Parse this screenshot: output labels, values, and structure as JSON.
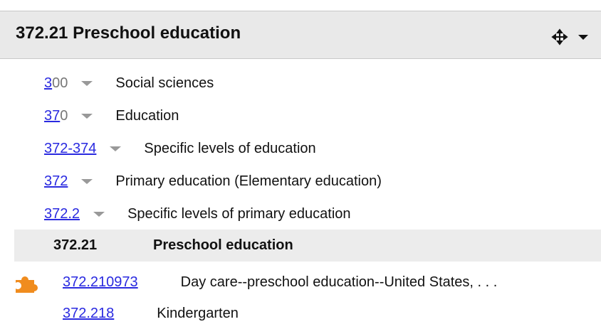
{
  "header": {
    "title": "372.21 Preschool education"
  },
  "hierarchy": [
    {
      "link": "3",
      "rest": "00",
      "label": "Social sciences"
    },
    {
      "link": "37",
      "rest": "0",
      "label": "Education"
    },
    {
      "link": "372-374",
      "label": "Specific levels of education"
    },
    {
      "link": "372",
      "label": "Primary education (Elementary education)"
    },
    {
      "link": "372.2",
      "label": "Specific levels of primary education"
    }
  ],
  "current": {
    "number": "372.21",
    "label": "Preschool education"
  },
  "children": [
    {
      "link": "372.210973",
      "label": "Day care--preschool education--United States, . . ."
    },
    {
      "link": "372.218",
      "label": "Kindergarten"
    }
  ]
}
